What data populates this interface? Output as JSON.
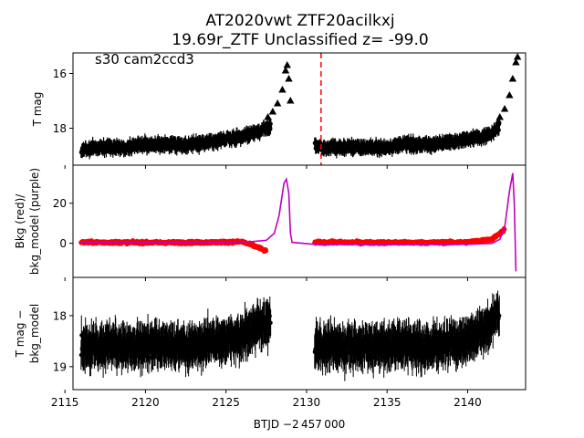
{
  "title_line1": "AT2020vwt  ZTF20acilkxj",
  "title_line2": "19.69r_ZTF Unclassified z= -99.0",
  "xlabel": "BTJD −2 457 000",
  "x_tick_labels": [
    "2115",
    "2120",
    "2125",
    "2130",
    "2135",
    "2140"
  ],
  "colors": {
    "data": "#000000",
    "bkg": "#ff0000",
    "model": "#bf00bf",
    "marker": "#ff0000"
  },
  "chart_data": [
    {
      "type": "scatter",
      "panel": "top",
      "annotation": "s30 cam2ccd3",
      "ylabel": "T mag",
      "y_inverted": true,
      "xlim": [
        2115.5,
        2143.6
      ],
      "ylim": [
        19.35,
        15.25
      ],
      "y_ticks": [
        16,
        18
      ],
      "y_tick_labels": [
        "16",
        "18"
      ],
      "vertical_marker_x": 2130.9,
      "series": [
        {
          "marker": "dot",
          "points": [
            [
              2116.0,
              18.8
            ],
            [
              2117.0,
              18.7
            ],
            [
              2118.0,
              18.7
            ],
            [
              2119.0,
              18.7
            ],
            [
              2120.0,
              18.6
            ],
            [
              2121.0,
              18.6
            ],
            [
              2122.0,
              18.6
            ],
            [
              2123.0,
              18.6
            ],
            [
              2124.0,
              18.5
            ],
            [
              2125.0,
              18.4
            ],
            [
              2126.0,
              18.3
            ],
            [
              2127.0,
              18.1
            ],
            [
              2127.8,
              17.9
            ],
            [
              2130.5,
              18.6
            ],
            [
              2131.0,
              18.7
            ],
            [
              2132.0,
              18.7
            ],
            [
              2133.0,
              18.7
            ],
            [
              2134.0,
              18.7
            ],
            [
              2135.0,
              18.7
            ],
            [
              2136.0,
              18.6
            ],
            [
              2137.0,
              18.6
            ],
            [
              2138.0,
              18.6
            ],
            [
              2139.0,
              18.5
            ],
            [
              2140.0,
              18.4
            ],
            [
              2141.0,
              18.3
            ],
            [
              2141.5,
              18.2
            ],
            [
              2142.0,
              17.9
            ]
          ]
        },
        {
          "marker": "triangle",
          "points": [
            [
              2127.6,
              17.6
            ],
            [
              2127.9,
              17.4
            ],
            [
              2128.2,
              17.1
            ],
            [
              2128.5,
              16.6
            ],
            [
              2128.7,
              15.9
            ],
            [
              2128.8,
              15.7
            ],
            [
              2128.9,
              16.2
            ],
            [
              2129.0,
              17.0
            ],
            [
              2142.0,
              17.6
            ],
            [
              2142.3,
              17.3
            ],
            [
              2142.6,
              16.8
            ],
            [
              2142.8,
              16.2
            ],
            [
              2143.0,
              15.6
            ],
            [
              2143.1,
              15.4
            ]
          ]
        }
      ]
    },
    {
      "type": "scatter",
      "panel": "middle",
      "ylabel_lines": [
        "Bkg (red)/",
        "bkg_model (purple)"
      ],
      "xlim": [
        2115.5,
        2143.6
      ],
      "ylim": [
        -17,
        39
      ],
      "y_ticks": [
        0,
        20
      ],
      "y_tick_labels": [
        "0",
        "20"
      ],
      "series": [
        {
          "name_hint": "bkg",
          "marker": "dot",
          "points": [
            [
              2116.0,
              0.5
            ],
            [
              2118.0,
              0.5
            ],
            [
              2120.0,
              0.4
            ],
            [
              2122.0,
              0.4
            ],
            [
              2124.0,
              0.5
            ],
            [
              2126.0,
              0.8
            ],
            [
              2127.0,
              -2.0
            ],
            [
              2127.5,
              -4.0
            ],
            [
              2130.5,
              0.5
            ],
            [
              2132.0,
              0.5
            ],
            [
              2134.0,
              0.4
            ],
            [
              2136.0,
              0.4
            ],
            [
              2138.0,
              0.4
            ],
            [
              2140.0,
              0.6
            ],
            [
              2141.5,
              2.0
            ],
            [
              2142.0,
              5.0
            ],
            [
              2142.3,
              7.0
            ]
          ]
        },
        {
          "name_hint": "bkg_model",
          "marker": "line",
          "points": [
            [
              2116.0,
              0.5
            ],
            [
              2124.0,
              0.5
            ],
            [
              2126.5,
              0.8
            ],
            [
              2127.5,
              1.5
            ],
            [
              2128.0,
              5.0
            ],
            [
              2128.3,
              14.0
            ],
            [
              2128.6,
              30.0
            ],
            [
              2128.75,
              32.0
            ],
            [
              2128.9,
              25.0
            ],
            [
              2129.0,
              5.0
            ],
            [
              2129.1,
              0.5
            ],
            [
              2130.5,
              -0.5
            ],
            [
              2140.0,
              -0.5
            ],
            [
              2141.5,
              0.0
            ],
            [
              2142.0,
              2.0
            ],
            [
              2142.3,
              8.0
            ],
            [
              2142.6,
              26.0
            ],
            [
              2142.8,
              35.0
            ],
            [
              2142.9,
              20.0
            ],
            [
              2143.0,
              -14.0
            ]
          ]
        }
      ]
    },
    {
      "type": "scatter",
      "panel": "bottom",
      "ylabel_lines": [
        "T mag −",
        "bkg_model"
      ],
      "y_inverted": true,
      "xlim": [
        2115.5,
        2143.6
      ],
      "ylim": [
        19.45,
        17.25
      ],
      "y_ticks": [
        18,
        19
      ],
      "y_tick_labels": [
        "18",
        "19"
      ],
      "series": [
        {
          "marker": "dot-errorbar",
          "points": [
            [
              2116.0,
              18.6
            ],
            [
              2117.0,
              18.6
            ],
            [
              2118.0,
              18.6
            ],
            [
              2119.0,
              18.6
            ],
            [
              2120.0,
              18.6
            ],
            [
              2121.0,
              18.6
            ],
            [
              2122.0,
              18.6
            ],
            [
              2123.0,
              18.6
            ],
            [
              2124.0,
              18.5
            ],
            [
              2125.0,
              18.5
            ],
            [
              2126.0,
              18.4
            ],
            [
              2127.0,
              18.2
            ],
            [
              2127.8,
              18.1
            ],
            [
              2130.5,
              18.6
            ],
            [
              2132.0,
              18.6
            ],
            [
              2134.0,
              18.6
            ],
            [
              2136.0,
              18.6
            ],
            [
              2138.0,
              18.6
            ],
            [
              2140.0,
              18.5
            ],
            [
              2141.0,
              18.3
            ],
            [
              2142.0,
              17.9
            ]
          ]
        }
      ]
    }
  ]
}
